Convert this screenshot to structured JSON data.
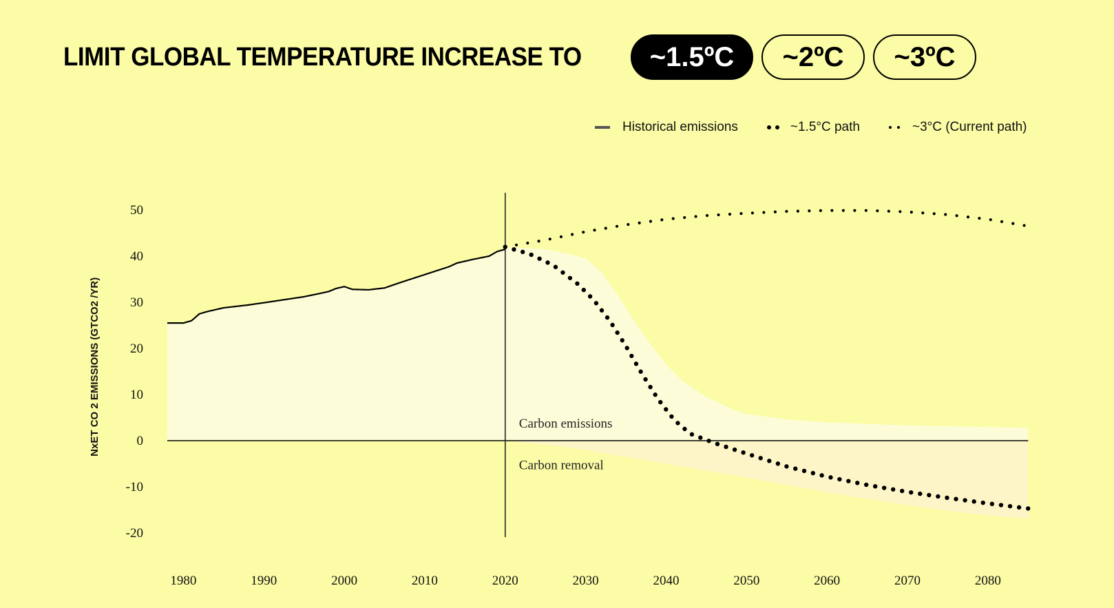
{
  "header": {
    "title": "LIMIT GLOBAL TEMPERATURE INCREASE TO",
    "options": [
      "~1.5ºC",
      "~2ºC",
      "~3ºC"
    ],
    "selected": 0
  },
  "legend": {
    "historical": "Historical emissions",
    "path_15": "~1.5°C path",
    "path_3": "~3°C (Current path)"
  },
  "chart_data": {
    "type": "line",
    "title": "",
    "xlabel": "",
    "ylabel": "NxET CO 2 EMISSIONS (GTCO2 /YR)",
    "xlim": [
      1978,
      2086
    ],
    "ylim": [
      -20,
      50
    ],
    "x_ticks": [
      1980,
      1990,
      2000,
      2010,
      2020,
      2030,
      2040,
      2050,
      2060,
      2070,
      2080
    ],
    "y_ticks": [
      50,
      40,
      30,
      20,
      10,
      0,
      -10,
      -20
    ],
    "divider_year": 2020,
    "annotations": [
      "Carbon emissions",
      "Carbon removal"
    ],
    "colors": {
      "background": "#fbfca5",
      "historical_fill": "#fcfdd8",
      "emissions_band": "#fcfdd8",
      "removal_band": "#fdf5c8",
      "line": "#000000"
    },
    "series": [
      {
        "key": "historical",
        "style": "solid",
        "x": [
          1978,
          1980,
          1981,
          1982,
          1983,
          1985,
          1988,
          1990,
          1995,
          1998,
          1999,
          2000,
          2001,
          2003,
          2005,
          2007,
          2010,
          2013,
          2014,
          2016,
          2018,
          2019,
          2020
        ],
        "y": [
          25.5,
          25.5,
          26,
          27.5,
          28,
          28.8,
          29.4,
          29.9,
          31.2,
          32.3,
          33,
          33.4,
          32.8,
          32.7,
          33.1,
          34.3,
          36,
          37.7,
          38.5,
          39.3,
          40,
          41,
          41.5
        ]
      },
      {
        "key": "path_3",
        "style": "dotted",
        "x": [
          2020,
          2025,
          2030,
          2035,
          2040,
          2045,
          2050,
          2055,
          2060,
          2065,
          2070,
          2075,
          2080,
          2085
        ],
        "y": [
          42,
          43.5,
          45.3,
          46.8,
          48,
          48.8,
          49.3,
          49.7,
          49.9,
          49.9,
          49.6,
          49,
          48,
          46.5
        ]
      },
      {
        "key": "path_15",
        "style": "dotted",
        "x": [
          2020,
          2023,
          2026,
          2029,
          2031,
          2033,
          2035,
          2037,
          2039,
          2041,
          2043,
          2046,
          2050,
          2055,
          2060,
          2065,
          2070,
          2075,
          2080,
          2085
        ],
        "y": [
          42,
          40.5,
          38,
          34,
          30.5,
          26,
          20.5,
          14.5,
          9,
          4.5,
          1.5,
          -0.5,
          -2.8,
          -5.6,
          -7.8,
          -9.6,
          -11.1,
          -12.4,
          -13.6,
          -14.7
        ]
      },
      {
        "key": "emissions_upper",
        "style": "band",
        "x": [
          2020,
          2025,
          2028,
          2030,
          2032,
          2034,
          2036,
          2038,
          2040,
          2042,
          2045,
          2048,
          2050,
          2055,
          2060,
          2070,
          2085
        ],
        "y": [
          42,
          41.5,
          40.5,
          39.5,
          36.5,
          31.5,
          26,
          21,
          16.5,
          13,
          9.5,
          7,
          5.8,
          4.6,
          4,
          3.3,
          2.8
        ]
      },
      {
        "key": "removal_lower",
        "style": "band",
        "x": [
          2020,
          2025,
          2030,
          2035,
          2040,
          2045,
          2050,
          2055,
          2060,
          2065,
          2070,
          2075,
          2080,
          2085
        ],
        "y": [
          0,
          -0.8,
          -2,
          -3.5,
          -5,
          -6.5,
          -8,
          -9.6,
          -11.2,
          -12.6,
          -14,
          -15.2,
          -16.2,
          -16.9
        ]
      }
    ]
  }
}
